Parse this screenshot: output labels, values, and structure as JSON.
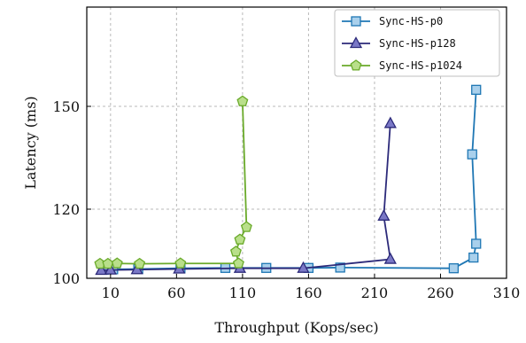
{
  "chart_data": {
    "type": "line",
    "xlabel": "Throughput (Kops/sec)",
    "ylabel": "Latency (ms)",
    "xlim": [
      -8,
      310
    ],
    "ylim": [
      100,
      180
    ],
    "xticks": [
      10,
      60,
      110,
      160,
      210,
      260,
      310
    ],
    "yticks": [
      100,
      120,
      150
    ],
    "grid": true,
    "legend_position": "top-right",
    "series": [
      {
        "name": "Sync-HS-p0",
        "color": "#1f77b4",
        "fill": "#a9d0ec",
        "marker": "square",
        "points": [
          [
            5,
            102.5
          ],
          [
            12,
            102.6
          ],
          [
            31,
            102.7
          ],
          [
            63,
            102.9
          ],
          [
            97,
            103.0
          ],
          [
            128,
            103.0
          ],
          [
            160,
            103.0
          ],
          [
            184,
            103.1
          ],
          [
            270,
            102.9
          ],
          [
            285,
            106.0
          ],
          [
            287,
            110.0
          ],
          [
            284,
            136.0
          ],
          [
            287,
            155.0
          ]
        ]
      },
      {
        "name": "Sync-HS-p128",
        "color": "#2c2a7a",
        "fill": "#7a78c6",
        "marker": "triangle",
        "points": [
          [
            3,
            102.3
          ],
          [
            10,
            102.4
          ],
          [
            30,
            102.5
          ],
          [
            62,
            102.7
          ],
          [
            108,
            102.9
          ],
          [
            156,
            102.9
          ],
          [
            222,
            105.5
          ],
          [
            217,
            118.0
          ],
          [
            222,
            145.0
          ]
        ]
      },
      {
        "name": "Sync-HS-p1024",
        "color": "#6aaa2a",
        "fill": "#b9df8a",
        "marker": "pentagon",
        "points": [
          [
            2,
            104.2
          ],
          [
            8,
            104.2
          ],
          [
            15,
            104.3
          ],
          [
            32,
            104.2
          ],
          [
            63,
            104.3
          ],
          [
            107,
            104.3
          ],
          [
            105,
            107.7
          ],
          [
            108,
            111.2
          ],
          [
            113,
            114.8
          ],
          [
            110,
            151.5
          ]
        ]
      }
    ]
  }
}
